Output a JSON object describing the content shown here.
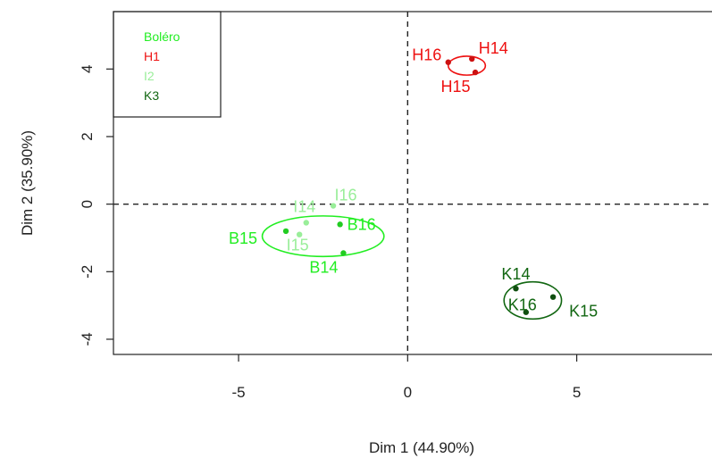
{
  "chart_data": {
    "type": "scatter",
    "xlabel": "Dim 1 (44.90%)",
    "ylabel": "Dim 2 (35.90%)",
    "xlim": [
      -8.7,
      9.0
    ],
    "ylim": [
      -4.45,
      5.7
    ],
    "x_ticks": [
      -5,
      0,
      5
    ],
    "y_ticks": [
      -4,
      -2,
      0,
      2,
      4
    ],
    "reference_lines": {
      "x": 0,
      "y": 0,
      "style": "dashed"
    },
    "legend": {
      "position": "top-left",
      "entries": [
        {
          "label": "Boléro",
          "color": "#22ee22"
        },
        {
          "label": "H1",
          "color": "#ee1111"
        },
        {
          "label": "I2",
          "color": "#99ee99"
        },
        {
          "label": "K3",
          "color": "#116611"
        }
      ]
    },
    "series": [
      {
        "name": "Boléro",
        "color": "#22ee22",
        "points": [
          {
            "label": "B14",
            "x": -1.9,
            "y": -1.45
          },
          {
            "label": "B15",
            "x": -3.6,
            "y": -0.8
          },
          {
            "label": "B16",
            "x": -2.0,
            "y": -0.6
          }
        ],
        "ellipse": {
          "cx": -2.5,
          "cy": -0.95,
          "rx": 1.8,
          "ry": 0.6,
          "angle_deg": 0
        }
      },
      {
        "name": "H1",
        "color": "#ee1111",
        "points": [
          {
            "label": "H14",
            "x": 1.9,
            "y": 4.3
          },
          {
            "label": "H15",
            "x": 2.0,
            "y": 3.9
          },
          {
            "label": "H16",
            "x": 1.2,
            "y": 4.2
          }
        ],
        "ellipse": {
          "cx": 1.75,
          "cy": 4.1,
          "rx": 0.55,
          "ry": 0.28,
          "angle_deg": 0
        }
      },
      {
        "name": "I2",
        "color": "#99ee99",
        "points": [
          {
            "label": "I14",
            "x": -3.0,
            "y": -0.55
          },
          {
            "label": "I15",
            "x": -3.2,
            "y": -0.9
          },
          {
            "label": "I16",
            "x": -2.2,
            "y": -0.05
          }
        ]
      },
      {
        "name": "K3",
        "color": "#116611",
        "points": [
          {
            "label": "K14",
            "x": 3.2,
            "y": -2.5
          },
          {
            "label": "K15",
            "x": 4.3,
            "y": -2.75
          },
          {
            "label": "K16",
            "x": 3.5,
            "y": -3.2
          }
        ],
        "ellipse": {
          "cx": 3.7,
          "cy": -2.85,
          "rx": 0.85,
          "ry": 0.55,
          "angle_deg": 0
        }
      }
    ]
  }
}
